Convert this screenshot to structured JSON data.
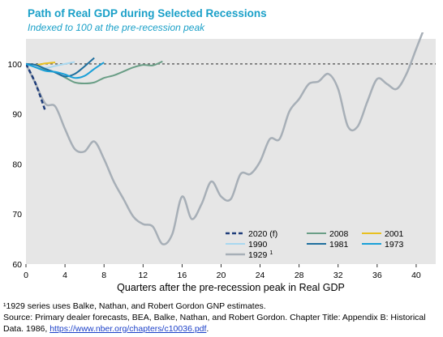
{
  "chart_data": {
    "type": "line",
    "title": "Path of Real GDP  during  Selected Recessions",
    "subtitle": "Indexed  to 100 at the pre-recession peak",
    "xlabel": "Quarters after the pre-recession peak in Real GDP",
    "ylabel": "",
    "xlim": [
      0,
      42
    ],
    "ylim": [
      60,
      105
    ],
    "xticks": [
      0,
      4,
      8,
      12,
      16,
      20,
      24,
      28,
      32,
      36,
      40
    ],
    "yticks": [
      60,
      70,
      80,
      90,
      100
    ],
    "reference_line": {
      "y": 100,
      "style": "dotted",
      "color": "#666666"
    },
    "grid": false,
    "legend": "bottom-right",
    "series": [
      {
        "name": "2020 (f)",
        "color": "#1f3d7a",
        "dashed": true,
        "width": 2.5,
        "x": [
          0,
          1,
          2
        ],
        "y": [
          100,
          96,
          90.5
        ]
      },
      {
        "name": "2008",
        "color": "#6a9e86",
        "dashed": false,
        "width": 2,
        "x": [
          0,
          1,
          2,
          3,
          4,
          5,
          6,
          7,
          8,
          9,
          10,
          11,
          12,
          13,
          14
        ],
        "y": [
          100,
          99.5,
          98.8,
          98.3,
          97.3,
          96.3,
          96.1,
          96.3,
          97.2,
          97.7,
          98.5,
          99.3,
          99.8,
          99.7,
          100.5
        ]
      },
      {
        "name": "2001",
        "color": "#e8c020",
        "dashed": false,
        "width": 2,
        "x": [
          0,
          1,
          2,
          3
        ],
        "y": [
          100,
          99.8,
          100.1,
          100.3
        ]
      },
      {
        "name": "1990",
        "color": "#a8d8f0",
        "dashed": false,
        "width": 2,
        "x": [
          0,
          1,
          2,
          3,
          4,
          5
        ],
        "y": [
          100,
          99.6,
          99.2,
          99.6,
          100.0,
          100.4
        ]
      },
      {
        "name": "1981",
        "color": "#1f6f9e",
        "dashed": false,
        "width": 2,
        "x": [
          0,
          1,
          2,
          3,
          4,
          5,
          6,
          7
        ],
        "y": [
          100,
          99.8,
          99.0,
          98.3,
          97.5,
          98.0,
          99.5,
          101.2
        ]
      },
      {
        "name": "1973",
        "color": "#1aa0d8",
        "dashed": false,
        "width": 2,
        "x": [
          0,
          1,
          2,
          3,
          4,
          5,
          6,
          7,
          8
        ],
        "y": [
          100,
          99.3,
          98.6,
          98.4,
          97.9,
          97.2,
          97.6,
          99.0,
          100.3
        ]
      },
      {
        "name": "1929",
        "name_sup": "1",
        "color": "#a7afb7",
        "dashed": false,
        "width": 2.5,
        "x": [
          0,
          1,
          2,
          3,
          4,
          5,
          6,
          7,
          8,
          9,
          10,
          11,
          12,
          13,
          14,
          15,
          16,
          17,
          18,
          19,
          20,
          21,
          22,
          23,
          24,
          25,
          26,
          27,
          28,
          29,
          30,
          31,
          32,
          33,
          34,
          35,
          36,
          37,
          38,
          39,
          40,
          41
        ],
        "y": [
          100,
          96,
          92,
          91.5,
          87,
          83,
          82.5,
          84.5,
          81,
          76.5,
          73,
          69.5,
          68,
          67.5,
          64,
          66,
          73.5,
          69,
          72,
          76.5,
          73.5,
          73,
          78,
          78,
          80.5,
          85,
          85,
          90.5,
          93,
          96,
          96.5,
          98,
          95,
          87.5,
          87.5,
          92.5,
          97,
          96,
          95,
          98,
          103,
          108
        ]
      }
    ]
  }
}
